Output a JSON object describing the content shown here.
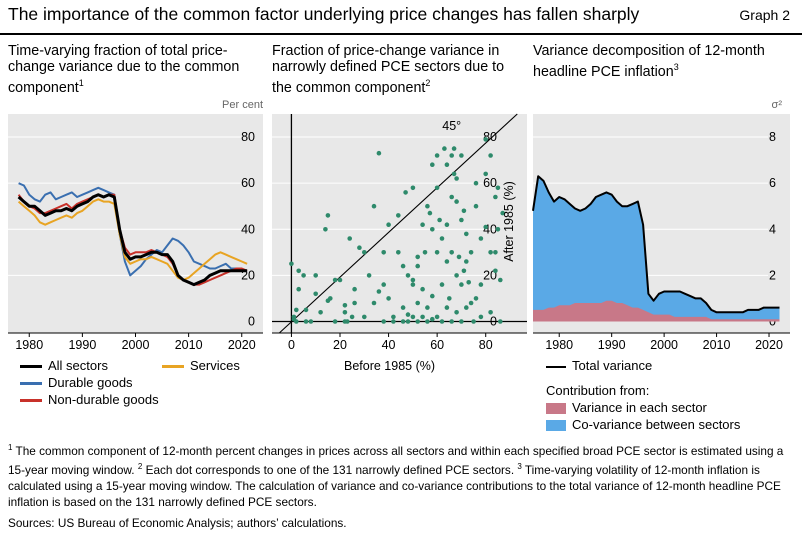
{
  "header": {
    "title": "The importance of the common factor underlying price changes has fallen sharply",
    "graph_label": "Graph 2"
  },
  "panels": {
    "left": {
      "title": "Time-varying fraction of total price-change variance due to the common component",
      "note_ref": "1",
      "unit": "Per cent"
    },
    "middle": {
      "title": "Fraction of price-change variance in narrowly defined PCE sectors due to the common component",
      "note_ref": "2",
      "xlabel": "Before 1985 (%)",
      "ylabel": "After 1985 (%)",
      "annotation": "45°"
    },
    "right": {
      "title": "Variance decomposition of 12-month headline PCE inflation",
      "note_ref": "3",
      "unit": "σ²"
    }
  },
  "legend_left": {
    "all_sectors": "All sectors",
    "services": "Services",
    "durable": "Durable goods",
    "nondurable": "Non-durable goods"
  },
  "legend_right": {
    "total": "Total variance",
    "contribution_from": "Contribution from:",
    "variance_each": "Variance in each sector",
    "covariance": "Co-variance between sectors"
  },
  "footnotes": {
    "n1": "1",
    "t1": " The common component of 12-month percent changes in prices across all sectors and within each specified broad PCE sector is estimated using a 15-year moving window. ",
    "n2": "2",
    "t2": " Each dot corresponds to one of the 131 narrowly defined PCE sectors. ",
    "n3": "3",
    "t3": " Time-varying volatility of 12-month inflation is calculated using a 15-year moving window. The calculation of variance and co-variance contributions to the total variance of 12-month headline PCE inflation is based on the 131 narrowly defined PCE sectors."
  },
  "sources": "Sources: US Bureau of Economic Analysis; authors’ calculations.",
  "colors": {
    "all": "#000000",
    "services": "#e8a423",
    "durable": "#3a6fb0",
    "nondurable": "#c8312a",
    "dots": "#2e8a6b",
    "covariance": "#5aa9e6",
    "variance": "#c87888",
    "plotbg": "#e8e8e8"
  },
  "chart_data": [
    {
      "type": "line",
      "title": "Time-varying fraction of total price-change variance due to the common component",
      "ylabel": "Per cent",
      "xlim": [
        1976,
        2024
      ],
      "ylim": [
        -5,
        90
      ],
      "xticks": [
        1980,
        1990,
        2000,
        2010,
        2020
      ],
      "yticks": [
        0,
        20,
        40,
        60,
        80
      ],
      "series": [
        {
          "name": "Durable goods",
          "color": "#3a6fb0",
          "x": [
            1978,
            1979,
            1980,
            1981,
            1982,
            1983,
            1984,
            1985,
            1986,
            1987,
            1988,
            1989,
            1990,
            1991,
            1992,
            1993,
            1994,
            1995,
            1996,
            1997,
            1998,
            1999,
            2000,
            2001,
            2002,
            2003,
            2004,
            2005,
            2006,
            2007,
            2008,
            2009,
            2010,
            2011,
            2012,
            2013,
            2014,
            2015,
            2016,
            2017,
            2018,
            2019,
            2020,
            2021
          ],
          "y": [
            60,
            59,
            55,
            53,
            52,
            55,
            56,
            53,
            54,
            55,
            56,
            54,
            55,
            56,
            57,
            58,
            57,
            56,
            55,
            38,
            26,
            20,
            22,
            24,
            27,
            29,
            31,
            30,
            33,
            36,
            35,
            33,
            30,
            26,
            25,
            24,
            23,
            23,
            24,
            25,
            23,
            23,
            22,
            22
          ]
        },
        {
          "name": "Non-durable goods",
          "color": "#c8312a",
          "x": [
            1978,
            1979,
            1980,
            1981,
            1982,
            1983,
            1984,
            1985,
            1986,
            1987,
            1988,
            1989,
            1990,
            1991,
            1992,
            1993,
            1994,
            1995,
            1996,
            1997,
            1998,
            1999,
            2000,
            2001,
            2002,
            2003,
            2004,
            2005,
            2006,
            2007,
            2008,
            2009,
            2010,
            2011,
            2012,
            2013,
            2014,
            2015,
            2016,
            2017,
            2018,
            2019,
            2020,
            2021
          ],
          "y": [
            55,
            52,
            50,
            49,
            47,
            47,
            48,
            49,
            50,
            51,
            49,
            51,
            52,
            53,
            54,
            55,
            54,
            55,
            55,
            40,
            32,
            29,
            30,
            30,
            30,
            31,
            30,
            29,
            28,
            25,
            20,
            18,
            17,
            16,
            16,
            17,
            18,
            19,
            20,
            21,
            22,
            23,
            23,
            22
          ]
        },
        {
          "name": "Services",
          "color": "#e8a423",
          "x": [
            1978,
            1979,
            1980,
            1981,
            1982,
            1983,
            1984,
            1985,
            1986,
            1987,
            1988,
            1989,
            1990,
            1991,
            1992,
            1993,
            1994,
            1995,
            1996,
            1997,
            1998,
            1999,
            2000,
            2001,
            2002,
            2003,
            2004,
            2005,
            2006,
            2007,
            2008,
            2009,
            2010,
            2011,
            2012,
            2013,
            2014,
            2015,
            2016,
            2017,
            2018,
            2019,
            2020,
            2021
          ],
          "y": [
            52,
            50,
            48,
            46,
            43,
            42,
            43,
            44,
            45,
            46,
            45,
            47,
            48,
            50,
            52,
            53,
            52,
            52,
            51,
            38,
            28,
            25,
            26,
            27,
            27,
            28,
            27,
            26,
            25,
            22,
            19,
            18,
            19,
            21,
            23,
            25,
            27,
            29,
            30,
            29,
            28,
            27,
            26,
            25
          ]
        },
        {
          "name": "All sectors",
          "color": "#000000",
          "x": [
            1978,
            1979,
            1980,
            1981,
            1982,
            1983,
            1984,
            1985,
            1986,
            1987,
            1988,
            1989,
            1990,
            1991,
            1992,
            1993,
            1994,
            1995,
            1996,
            1997,
            1998,
            1999,
            2000,
            2001,
            2002,
            2003,
            2004,
            2005,
            2006,
            2007,
            2008,
            2009,
            2010,
            2011,
            2012,
            2013,
            2014,
            2015,
            2016,
            2017,
            2018,
            2019,
            2020,
            2021
          ],
          "y": [
            54,
            52,
            50,
            50,
            48,
            46,
            47,
            48,
            48,
            49,
            48,
            50,
            51,
            52,
            54,
            55,
            54,
            55,
            54,
            40,
            30,
            27,
            28,
            28,
            29,
            30,
            30,
            29,
            29,
            26,
            20,
            18,
            17,
            16,
            17,
            18,
            20,
            21,
            22,
            22,
            22,
            22,
            22,
            22
          ]
        }
      ]
    },
    {
      "type": "scatter",
      "title": "Fraction of price-change variance in narrowly defined PCE sectors due to the common component",
      "xlabel": "Before 1985 (%)",
      "ylabel": "After 1985 (%)",
      "xlim": [
        -8,
        97
      ],
      "ylim": [
        -5,
        90
      ],
      "xticks": [
        0,
        20,
        40,
        60,
        80
      ],
      "yticks": [
        0,
        20,
        40,
        60,
        80
      ],
      "reference_line": "45°",
      "points": [
        [
          0,
          25
        ],
        [
          1,
          2
        ],
        [
          1,
          1
        ],
        [
          2,
          0
        ],
        [
          2,
          5
        ],
        [
          3,
          14
        ],
        [
          3,
          22
        ],
        [
          5,
          20
        ],
        [
          6,
          5
        ],
        [
          8,
          0
        ],
        [
          10,
          20
        ],
        [
          12,
          4
        ],
        [
          14,
          40
        ],
        [
          15,
          46
        ],
        [
          15,
          9
        ],
        [
          16,
          10
        ],
        [
          18,
          0
        ],
        [
          20,
          18
        ],
        [
          22,
          4
        ],
        [
          22,
          7
        ],
        [
          22,
          0
        ],
        [
          23,
          0
        ],
        [
          24,
          36
        ],
        [
          25,
          2
        ],
        [
          26,
          14
        ],
        [
          28,
          32
        ],
        [
          30,
          2
        ],
        [
          32,
          20
        ],
        [
          34,
          8
        ],
        [
          36,
          73
        ],
        [
          36,
          13
        ],
        [
          38,
          16
        ],
        [
          38,
          30
        ],
        [
          38,
          0
        ],
        [
          40,
          10
        ],
        [
          42,
          2
        ],
        [
          42,
          0
        ],
        [
          44,
          30
        ],
        [
          46,
          0
        ],
        [
          46,
          6
        ],
        [
          47,
          56
        ],
        [
          48,
          0
        ],
        [
          48,
          3
        ],
        [
          48,
          20
        ],
        [
          50,
          18
        ],
        [
          50,
          16
        ],
        [
          50,
          2
        ],
        [
          52,
          24
        ],
        [
          52,
          28
        ],
        [
          52,
          0
        ],
        [
          54,
          42
        ],
        [
          54,
          14
        ],
        [
          54,
          2
        ],
        [
          55,
          30
        ],
        [
          56,
          0
        ],
        [
          56,
          6
        ],
        [
          57,
          47
        ],
        [
          58,
          68
        ],
        [
          58,
          1
        ],
        [
          58,
          11
        ],
        [
          60,
          72
        ],
        [
          60,
          58
        ],
        [
          60,
          30
        ],
        [
          60,
          2
        ],
        [
          61,
          44
        ],
        [
          62,
          36
        ],
        [
          62,
          0
        ],
        [
          63,
          75
        ],
        [
          64,
          68
        ],
        [
          64,
          42
        ],
        [
          64,
          26
        ],
        [
          64,
          6
        ],
        [
          65,
          10
        ],
        [
          66,
          54
        ],
        [
          66,
          30
        ],
        [
          66,
          0
        ],
        [
          67,
          75
        ],
        [
          67,
          64
        ],
        [
          68,
          62
        ],
        [
          68,
          20
        ],
        [
          68,
          4
        ],
        [
          69,
          28
        ],
        [
          70,
          72
        ],
        [
          70,
          44
        ],
        [
          70,
          16
        ],
        [
          70,
          0
        ],
        [
          71,
          48
        ],
        [
          71,
          22
        ],
        [
          72,
          38
        ],
        [
          72,
          26
        ],
        [
          72,
          6
        ],
        [
          73,
          17
        ],
        [
          74,
          8
        ],
        [
          74,
          30
        ],
        [
          75,
          0
        ],
        [
          76,
          60
        ],
        [
          78,
          36
        ],
        [
          78,
          2
        ],
        [
          80,
          41
        ],
        [
          80,
          79
        ],
        [
          82,
          72
        ],
        [
          82,
          30
        ],
        [
          82,
          4
        ],
        [
          84,
          54
        ],
        [
          84,
          22
        ],
        [
          85,
          58
        ],
        [
          85,
          40
        ],
        [
          86,
          18
        ],
        [
          86,
          0
        ],
        [
          87,
          47
        ],
        [
          78,
          16
        ],
        [
          76,
          50
        ],
        [
          58,
          40
        ],
        [
          44,
          46
        ],
        [
          10,
          12
        ],
        [
          6,
          0
        ],
        [
          18,
          18
        ],
        [
          26,
          8
        ],
        [
          34,
          50
        ],
        [
          46,
          24
        ],
        [
          56,
          50
        ],
        [
          62,
          16
        ],
        [
          66,
          72
        ],
        [
          76,
          10
        ],
        [
          80,
          64
        ],
        [
          84,
          30
        ],
        [
          40,
          42
        ],
        [
          50,
          58
        ],
        [
          68,
          52
        ],
        [
          52,
          8
        ],
        [
          30,
          30
        ]
      ]
    },
    {
      "type": "area",
      "title": "Variance decomposition of 12-month headline PCE inflation",
      "ylabel": "σ²",
      "xlim": [
        1975,
        2024
      ],
      "ylim": [
        -0.5,
        9
      ],
      "xticks": [
        1980,
        1990,
        2000,
        2010,
        2020
      ],
      "yticks": [
        0,
        2,
        4,
        6,
        8
      ],
      "x": [
        1975,
        1976,
        1977,
        1978,
        1979,
        1980,
        1981,
        1982,
        1983,
        1984,
        1985,
        1986,
        1987,
        1988,
        1989,
        1990,
        1991,
        1992,
        1993,
        1994,
        1995,
        1996,
        1997,
        1998,
        1999,
        2000,
        2001,
        2002,
        2003,
        2004,
        2005,
        2006,
        2007,
        2008,
        2009,
        2010,
        2011,
        2012,
        2013,
        2014,
        2015,
        2016,
        2017,
        2018,
        2019,
        2020,
        2021,
        2022
      ],
      "series": [
        {
          "name": "Total variance",
          "color": "#000000",
          "values": [
            4.8,
            6.3,
            6.1,
            5.6,
            5.2,
            5.4,
            5.3,
            5.1,
            4.9,
            4.8,
            4.9,
            5.1,
            5.4,
            5.5,
            5.6,
            5.5,
            5.2,
            5.0,
            5.0,
            5.1,
            5.2,
            4.2,
            1.2,
            0.9,
            1.2,
            1.3,
            1.3,
            1.3,
            1.3,
            1.2,
            1.1,
            1.0,
            1.0,
            0.8,
            0.5,
            0.4,
            0.4,
            0.4,
            0.4,
            0.4,
            0.4,
            0.5,
            0.5,
            0.5,
            0.6,
            0.6,
            0.6,
            0.6
          ]
        },
        {
          "name": "Variance in each sector",
          "color": "#c87888",
          "values": [
            0.5,
            0.5,
            0.5,
            0.6,
            0.6,
            0.7,
            0.7,
            0.7,
            0.8,
            0.8,
            0.8,
            0.8,
            0.8,
            0.8,
            0.9,
            0.9,
            0.8,
            0.8,
            0.7,
            0.6,
            0.6,
            0.5,
            0.4,
            0.3,
            0.3,
            0.3,
            0.3,
            0.2,
            0.2,
            0.2,
            0.2,
            0.2,
            0.2,
            0.2,
            0.1,
            0.1,
            0.1,
            0.1,
            0.1,
            0.1,
            0.1,
            0.1,
            0.1,
            0.1,
            0.1,
            0.1,
            0.1,
            0.1
          ]
        },
        {
          "name": "Co-variance between sectors",
          "color": "#5aa9e6",
          "values": [
            4.3,
            5.8,
            5.6,
            5.0,
            4.6,
            4.7,
            4.6,
            4.4,
            4.1,
            4.0,
            4.1,
            4.3,
            4.6,
            4.7,
            4.7,
            4.6,
            4.4,
            4.2,
            4.3,
            4.5,
            4.6,
            3.7,
            0.8,
            0.6,
            0.9,
            1.0,
            1.0,
            1.1,
            1.1,
            1.0,
            0.9,
            0.8,
            0.8,
            0.6,
            0.4,
            0.3,
            0.3,
            0.3,
            0.3,
            0.3,
            0.3,
            0.4,
            0.4,
            0.4,
            0.5,
            0.5,
            0.5,
            0.5
          ]
        }
      ]
    }
  ]
}
